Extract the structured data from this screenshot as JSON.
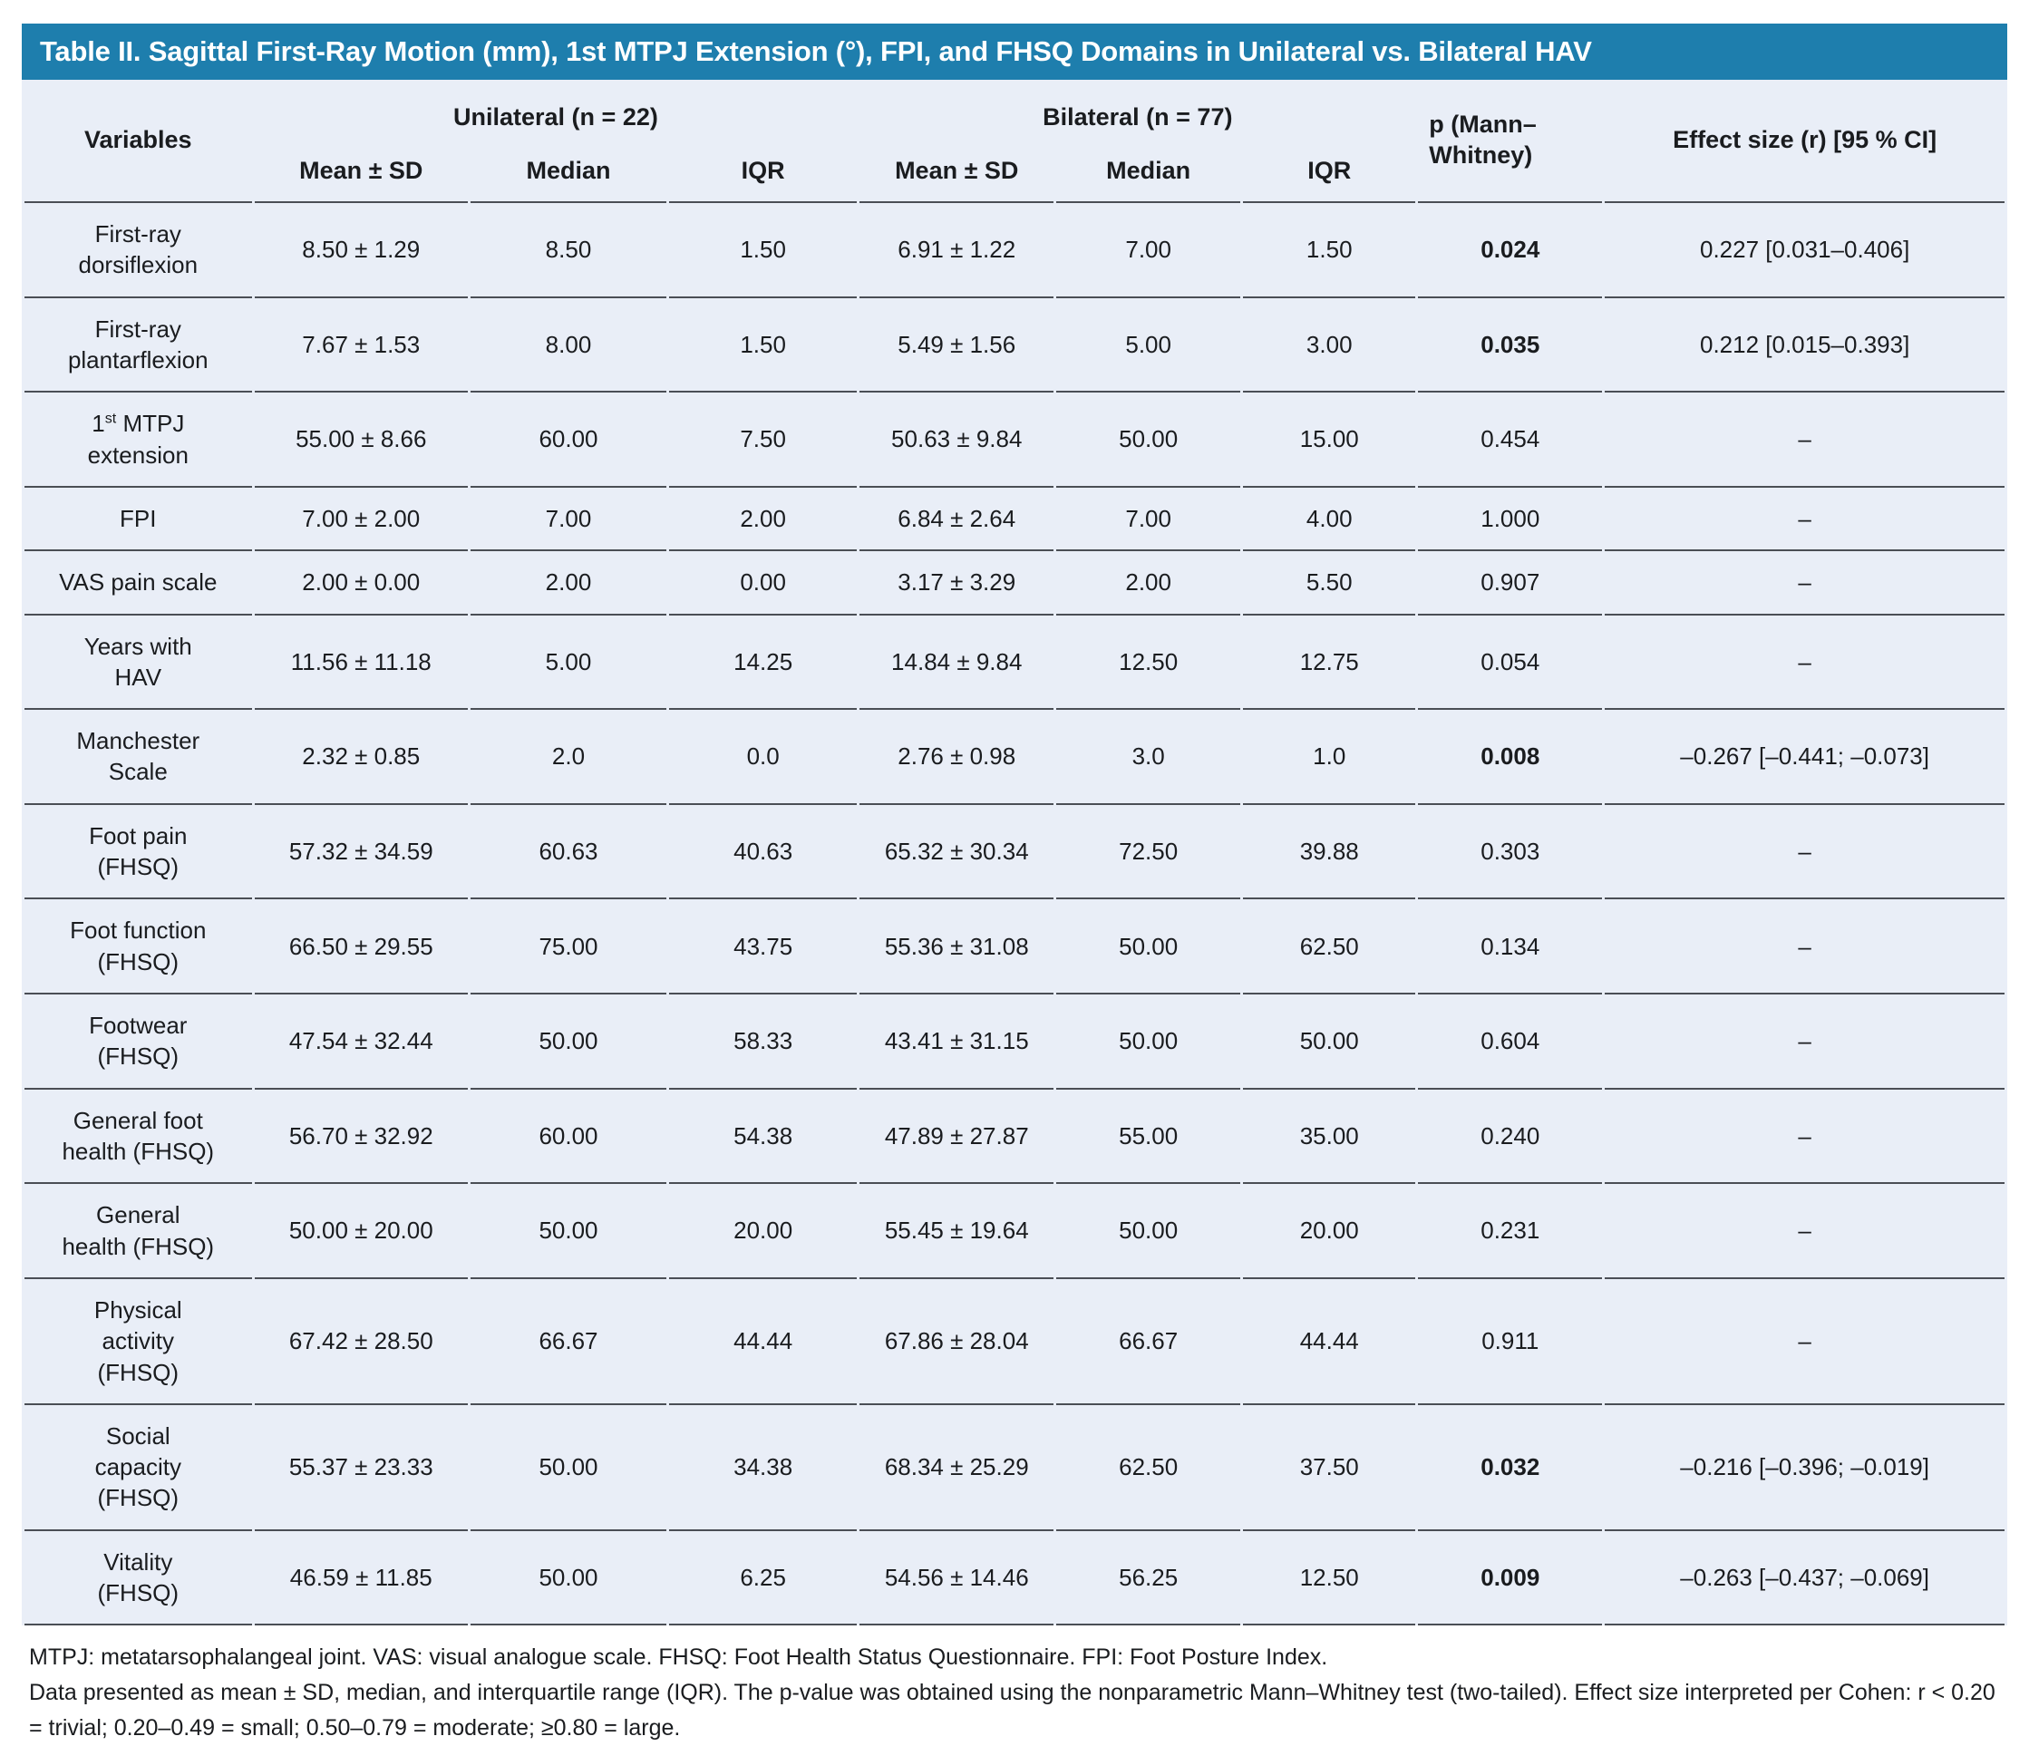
{
  "title": "Table II. Sagittal First-Ray Motion (mm), 1st MTPJ Extension (°), FPI, and FHSQ Domains in Unilateral vs. Bilateral HAV",
  "colors": {
    "title_bar": "#1e7ead",
    "table_background": "#e9eef7",
    "rule_line": "#4a4e55",
    "title_text": "#ffffff"
  },
  "columns": {
    "variables": "Variables",
    "unilateral_group": "Unilateral (n = 22)",
    "bilateral_group": "Bilateral (n = 77)",
    "subcolumns": [
      "Mean ± SD",
      "Median",
      "IQR"
    ],
    "p": "p (Mann–\nWhitney)",
    "effect": "Effect size (r) [95 % CI]"
  },
  "rows": [
    {
      "label": "First-ray\ndorsiflexion",
      "uni": [
        "8.50 ± 1.29",
        "8.50",
        "1.50"
      ],
      "bil": [
        "6.91 ± 1.22",
        "7.00",
        "1.50"
      ],
      "p": "0.024",
      "p_bold": true,
      "effect": "0.227 [0.031–0.406]"
    },
    {
      "label": "First-ray\nplantarflexion",
      "uni": [
        "7.67 ± 1.53",
        "8.00",
        "1.50"
      ],
      "bil": [
        "5.49 ± 1.56",
        "5.00",
        "3.00"
      ],
      "p": "0.035",
      "p_bold": true,
      "effect": "0.212 [0.015–0.393]"
    },
    {
      "label": "1^{st} MTPJ\nextension",
      "uni": [
        "55.00 ± 8.66",
        "60.00",
        "7.50"
      ],
      "bil": [
        "50.63 ± 9.84",
        "50.00",
        "15.00"
      ],
      "p": "0.454",
      "p_bold": false,
      "effect": "–"
    },
    {
      "label": "FPI",
      "uni": [
        "7.00 ± 2.00",
        "7.00",
        "2.00"
      ],
      "bil": [
        "6.84 ± 2.64",
        "7.00",
        "4.00"
      ],
      "p": "1.000",
      "p_bold": false,
      "effect": "–"
    },
    {
      "label": "VAS pain scale",
      "uni": [
        "2.00 ± 0.00",
        "2.00",
        "0.00"
      ],
      "bil": [
        "3.17 ± 3.29",
        "2.00",
        "5.50"
      ],
      "p": "0.907",
      "p_bold": false,
      "effect": "–"
    },
    {
      "label": "Years with\nHAV",
      "uni": [
        "11.56 ± 11.18",
        "5.00",
        "14.25"
      ],
      "bil": [
        "14.84 ± 9.84",
        "12.50",
        "12.75"
      ],
      "p": "0.054",
      "p_bold": false,
      "effect": "–"
    },
    {
      "label": "Manchester\nScale",
      "uni": [
        "2.32 ± 0.85",
        "2.0",
        "0.0"
      ],
      "bil": [
        "2.76 ± 0.98",
        "3.0",
        "1.0"
      ],
      "p": "0.008",
      "p_bold": true,
      "effect": "–0.267 [–0.441; –0.073]"
    },
    {
      "label": "Foot pain\n(FHSQ)",
      "uni": [
        "57.32 ± 34.59",
        "60.63",
        "40.63"
      ],
      "bil": [
        "65.32 ± 30.34",
        "72.50",
        "39.88"
      ],
      "p": "0.303",
      "p_bold": false,
      "effect": "–"
    },
    {
      "label": "Foot function\n(FHSQ)",
      "uni": [
        "66.50 ± 29.55",
        "75.00",
        "43.75"
      ],
      "bil": [
        "55.36 ± 31.08",
        "50.00",
        "62.50"
      ],
      "p": "0.134",
      "p_bold": false,
      "effect": "–"
    },
    {
      "label": "Footwear\n(FHSQ)",
      "uni": [
        "47.54 ± 32.44",
        "50.00",
        "58.33"
      ],
      "bil": [
        "43.41 ± 31.15",
        "50.00",
        "50.00"
      ],
      "p": "0.604",
      "p_bold": false,
      "effect": "–"
    },
    {
      "label": "General foot\nhealth (FHSQ)",
      "uni": [
        "56.70 ± 32.92",
        "60.00",
        "54.38"
      ],
      "bil": [
        "47.89 ± 27.87",
        "55.00",
        "35.00"
      ],
      "p": "0.240",
      "p_bold": false,
      "effect": "–"
    },
    {
      "label": "General\nhealth (FHSQ)",
      "uni": [
        "50.00 ± 20.00",
        "50.00",
        "20.00"
      ],
      "bil": [
        "55.45 ± 19.64",
        "50.00",
        "20.00"
      ],
      "p": "0.231",
      "p_bold": false,
      "effect": "–"
    },
    {
      "label": "Physical\nactivity\n(FHSQ)",
      "uni": [
        "67.42 ± 28.50",
        "66.67",
        "44.44"
      ],
      "bil": [
        "67.86 ± 28.04",
        "66.67",
        "44.44"
      ],
      "p": "0.911",
      "p_bold": false,
      "effect": "–"
    },
    {
      "label": "Social\ncapacity\n(FHSQ)",
      "uni": [
        "55.37 ± 23.33",
        "50.00",
        "34.38"
      ],
      "bil": [
        "68.34 ± 25.29",
        "62.50",
        "37.50"
      ],
      "p": "0.032",
      "p_bold": true,
      "effect": "–0.216 [–0.396; –0.019]"
    },
    {
      "label": "Vitality\n(FHSQ)",
      "uni": [
        "46.59 ± 11.85",
        "50.00",
        "6.25"
      ],
      "bil": [
        "54.56 ± 14.46",
        "56.25",
        "12.50"
      ],
      "p": "0.009",
      "p_bold": true,
      "effect": "–0.263 [–0.437; –0.069]"
    }
  ],
  "footnotes": [
    "MTPJ: metatarsophalangeal joint. VAS: visual analogue scale. FHSQ: Foot Health Status Questionnaire. FPI: Foot Posture Index.",
    "Data presented as mean ± SD, median, and interquartile range (IQR). The p-value was obtained using the nonparametric Mann–Whitney test (two-tailed). Effect size interpreted per Cohen: r < 0.20 = trivial; 0.20–0.49 = small; 0.50–0.79 = moderate; ≥0.80 = large."
  ]
}
